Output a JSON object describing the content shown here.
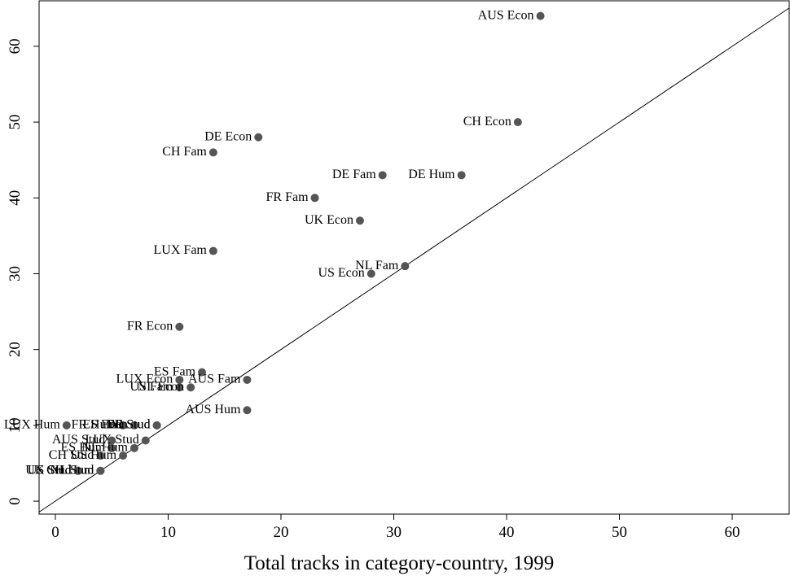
{
  "chart_data": {
    "type": "scatter",
    "x_label": "Total tracks in category-country, 1999",
    "xlim": [
      -1.44,
      65.05
    ],
    "ylim": [
      -1.71,
      66.0
    ],
    "xticks": [
      0,
      10,
      20,
      30,
      40,
      50,
      60
    ],
    "yticks": [
      0,
      10,
      20,
      30,
      40,
      50,
      60
    ],
    "color": "#555555",
    "labels": [
      "AUS Econ",
      "CH Econ",
      "DE Econ",
      "CH Fam",
      "DE Fam",
      "DE Hum",
      "FR Fam",
      "UK Econ",
      "LUX Fam",
      "NL Fam",
      "US Econ",
      "FR Econ",
      "ES Fam",
      "AUS Fam",
      "LUX Econ",
      "US Fam",
      "NL Econ",
      "AUS Hum",
      "LUX Hum",
      "FR Hum",
      "ES Econ",
      "DE Stud",
      "FR Stud",
      "LUX Stud",
      "AUS Stud",
      "ES Hum",
      "CH Stud",
      "US Hum",
      "NL Hum",
      "CH Hum",
      "US Stud",
      "UK Stud",
      "NL Stud"
    ],
    "x": [
      43,
      41,
      18,
      14,
      29,
      36,
      23,
      27,
      14,
      31,
      28,
      11,
      13,
      17,
      11,
      11,
      12,
      17,
      1,
      6,
      7,
      9,
      9,
      8,
      5,
      5,
      4,
      6,
      7,
      4,
      2,
      2,
      4
    ],
    "values": [
      64,
      50,
      48,
      46,
      43,
      43,
      40,
      37,
      33,
      31,
      30,
      23,
      17,
      16,
      16,
      15,
      15,
      12,
      10,
      10,
      10,
      10,
      10,
      8,
      8,
      7,
      6,
      6,
      7,
      4,
      4,
      4,
      4
    ]
  }
}
